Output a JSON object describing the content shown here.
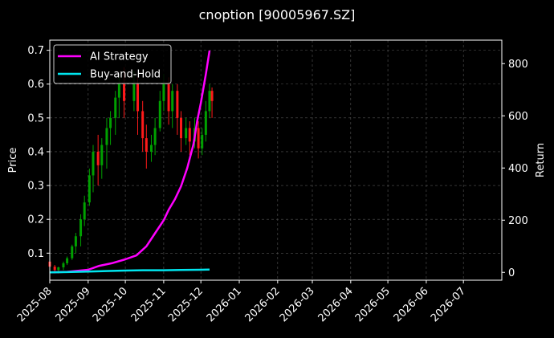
{
  "chart_data": {
    "type": "line",
    "title": "cnoption [90005967.SZ]",
    "ylabel_left": "Price",
    "ylabel_right": "Return",
    "grid": true,
    "legend_position": "top-left",
    "x_tick_labels": [
      "2025-08",
      "2025-09",
      "2025-10",
      "2025-11",
      "2025-12",
      "2026-01",
      "2026-02",
      "2026-03",
      "2026-04",
      "2026-05",
      "2026-06",
      "2026-07"
    ],
    "xlim": [
      "2025-08-01",
      "2026-08-01"
    ],
    "ylim_left": [
      0.02,
      0.73
    ],
    "ylim_right": [
      -30,
      890
    ],
    "yticks_left": [
      0.1,
      0.2,
      0.3,
      0.4,
      0.5,
      0.6,
      0.7
    ],
    "yticks_right": [
      0,
      200,
      400,
      600,
      800
    ],
    "y_tick_labels_left": [
      "0.1",
      "0.2",
      "0.3",
      "0.4",
      "0.5",
      "0.6",
      "0.7"
    ],
    "y_tick_labels_right": [
      "0",
      "200",
      "400",
      "600",
      "800"
    ],
    "colors": {
      "up": "#00a000",
      "down": "#ff1a1a",
      "ai": "#ff00ff",
      "bh": "#00e5ee",
      "background": "#000000",
      "grid": "#555555",
      "text": "#ffffff"
    },
    "series": [
      {
        "name": "AI Strategy",
        "axis": "right",
        "x": [
          "2025-08-01",
          "2025-08-15",
          "2025-09-01",
          "2025-09-10",
          "2025-09-20",
          "2025-10-01",
          "2025-10-10",
          "2025-10-18",
          "2025-10-25",
          "2025-11-01",
          "2025-11-05",
          "2025-11-10",
          "2025-11-15",
          "2025-11-20",
          "2025-11-25",
          "2025-11-28",
          "2025-12-01",
          "2025-12-05",
          "2025-12-08"
        ],
        "values": [
          0,
          2,
          10,
          25,
          35,
          50,
          65,
          100,
          150,
          200,
          240,
          280,
          330,
          400,
          490,
          580,
          650,
          760,
          850
        ]
      },
      {
        "name": "Buy-and-Hold",
        "axis": "right",
        "x": [
          "2025-08-01",
          "2025-08-15",
          "2025-09-01",
          "2025-09-15",
          "2025-10-01",
          "2025-10-15",
          "2025-11-01",
          "2025-11-15",
          "2025-12-01",
          "2025-12-08"
        ],
        "values": [
          0,
          1,
          3,
          5,
          7,
          8,
          8,
          9,
          10,
          11
        ]
      }
    ],
    "candles": [
      {
        "date": "2025-08-01",
        "open": 0.075,
        "close": 0.06,
        "high": 0.08,
        "low": 0.045
      },
      {
        "date": "2025-08-05",
        "open": 0.06,
        "close": 0.05,
        "high": 0.065,
        "low": 0.04
      },
      {
        "date": "2025-08-08",
        "open": 0.05,
        "close": 0.058,
        "high": 0.06,
        "low": 0.04
      },
      {
        "date": "2025-08-12",
        "open": 0.058,
        "close": 0.07,
        "high": 0.075,
        "low": 0.05
      },
      {
        "date": "2025-08-15",
        "open": 0.07,
        "close": 0.085,
        "high": 0.09,
        "low": 0.065
      },
      {
        "date": "2025-08-19",
        "open": 0.085,
        "close": 0.12,
        "high": 0.125,
        "low": 0.08
      },
      {
        "date": "2025-08-22",
        "open": 0.12,
        "close": 0.15,
        "high": 0.16,
        "low": 0.1
      },
      {
        "date": "2025-08-26",
        "open": 0.15,
        "close": 0.2,
        "high": 0.215,
        "low": 0.12
      },
      {
        "date": "2025-08-29",
        "open": 0.2,
        "close": 0.25,
        "high": 0.27,
        "low": 0.18
      },
      {
        "date": "2025-09-02",
        "open": 0.25,
        "close": 0.33,
        "high": 0.35,
        "low": 0.24
      },
      {
        "date": "2025-09-05",
        "open": 0.33,
        "close": 0.4,
        "high": 0.42,
        "low": 0.28
      },
      {
        "date": "2025-09-09",
        "open": 0.4,
        "close": 0.36,
        "high": 0.45,
        "low": 0.3
      },
      {
        "date": "2025-09-12",
        "open": 0.36,
        "close": 0.42,
        "high": 0.44,
        "low": 0.32
      },
      {
        "date": "2025-09-16",
        "open": 0.42,
        "close": 0.47,
        "high": 0.5,
        "low": 0.35
      },
      {
        "date": "2025-09-19",
        "open": 0.47,
        "close": 0.5,
        "high": 0.52,
        "low": 0.42
      },
      {
        "date": "2025-09-23",
        "open": 0.5,
        "close": 0.56,
        "high": 0.58,
        "low": 0.45
      },
      {
        "date": "2025-09-26",
        "open": 0.56,
        "close": 0.6,
        "high": 0.62,
        "low": 0.5
      },
      {
        "date": "2025-09-30",
        "open": 0.6,
        "close": 0.55,
        "high": 0.65,
        "low": 0.5
      },
      {
        "date": "2025-10-08",
        "open": 0.55,
        "close": 0.6,
        "high": 0.64,
        "low": 0.52
      },
      {
        "date": "2025-10-11",
        "open": 0.6,
        "close": 0.52,
        "high": 0.62,
        "low": 0.45
      },
      {
        "date": "2025-10-15",
        "open": 0.52,
        "close": 0.44,
        "high": 0.55,
        "low": 0.4
      },
      {
        "date": "2025-10-18",
        "open": 0.44,
        "close": 0.4,
        "high": 0.48,
        "low": 0.35
      },
      {
        "date": "2025-10-22",
        "open": 0.4,
        "close": 0.42,
        "high": 0.45,
        "low": 0.37
      },
      {
        "date": "2025-10-25",
        "open": 0.42,
        "close": 0.47,
        "high": 0.5,
        "low": 0.39
      },
      {
        "date": "2025-10-29",
        "open": 0.47,
        "close": 0.55,
        "high": 0.58,
        "low": 0.46
      },
      {
        "date": "2025-11-01",
        "open": 0.55,
        "close": 0.6,
        "high": 0.63,
        "low": 0.52
      },
      {
        "date": "2025-11-05",
        "open": 0.6,
        "close": 0.52,
        "high": 0.62,
        "low": 0.48
      },
      {
        "date": "2025-11-08",
        "open": 0.52,
        "close": 0.58,
        "high": 0.6,
        "low": 0.47
      },
      {
        "date": "2025-11-12",
        "open": 0.58,
        "close": 0.5,
        "high": 0.6,
        "low": 0.45
      },
      {
        "date": "2025-11-15",
        "open": 0.5,
        "close": 0.44,
        "high": 0.52,
        "low": 0.4
      },
      {
        "date": "2025-11-19",
        "open": 0.44,
        "close": 0.47,
        "high": 0.5,
        "low": 0.42
      },
      {
        "date": "2025-11-22",
        "open": 0.47,
        "close": 0.43,
        "high": 0.49,
        "low": 0.39
      },
      {
        "date": "2025-11-26",
        "open": 0.43,
        "close": 0.47,
        "high": 0.5,
        "low": 0.41
      },
      {
        "date": "2025-11-29",
        "open": 0.47,
        "close": 0.41,
        "high": 0.49,
        "low": 0.38
      },
      {
        "date": "2025-12-02",
        "open": 0.41,
        "close": 0.45,
        "high": 0.47,
        "low": 0.39
      },
      {
        "date": "2025-12-05",
        "open": 0.45,
        "close": 0.52,
        "high": 0.55,
        "low": 0.43
      },
      {
        "date": "2025-12-08",
        "open": 0.52,
        "close": 0.58,
        "high": 0.6,
        "low": 0.5
      },
      {
        "date": "2025-12-10",
        "open": 0.58,
        "close": 0.55,
        "high": 0.59,
        "low": 0.5
      }
    ]
  }
}
